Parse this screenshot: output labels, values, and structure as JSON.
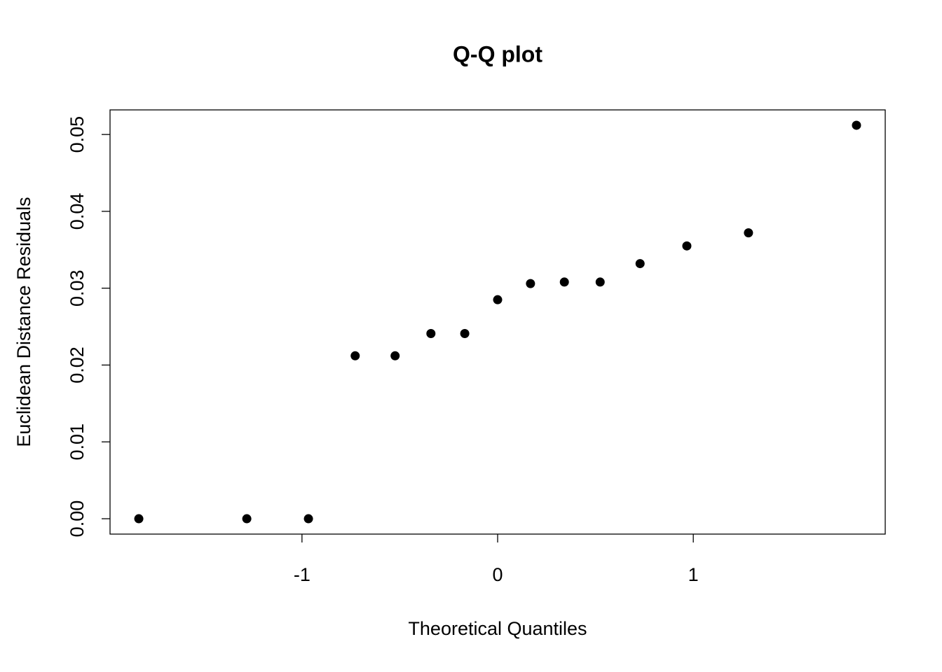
{
  "chart_data": {
    "type": "scatter",
    "title": "Q-Q plot",
    "x_label": "Theoretical Quantiles",
    "y_label": "Euclidean Distance Residuals",
    "x": [
      -1.834,
      -1.282,
      -0.967,
      -0.728,
      -0.524,
      -0.341,
      -0.168,
      0,
      0.168,
      0.341,
      0.524,
      0.728,
      0.967,
      1.282,
      1.834
    ],
    "values": [
      0,
      0,
      0,
      0.0212,
      0.0212,
      0.0241,
      0.0241,
      0.0285,
      0.0306,
      0.0308,
      0.0308,
      0.0332,
      0.0355,
      0.0372,
      0.0512
    ],
    "color": "#000000",
    "xlim": [
      -1.981,
      1.981
    ],
    "xticks": [
      -1,
      0,
      1
    ],
    "ylim": [
      -0.002,
      0.0532
    ],
    "yticks": [
      {
        "value": 0,
        "label": "0.00"
      },
      0.01,
      0.02,
      0.03,
      0.04,
      0.05
    ]
  }
}
